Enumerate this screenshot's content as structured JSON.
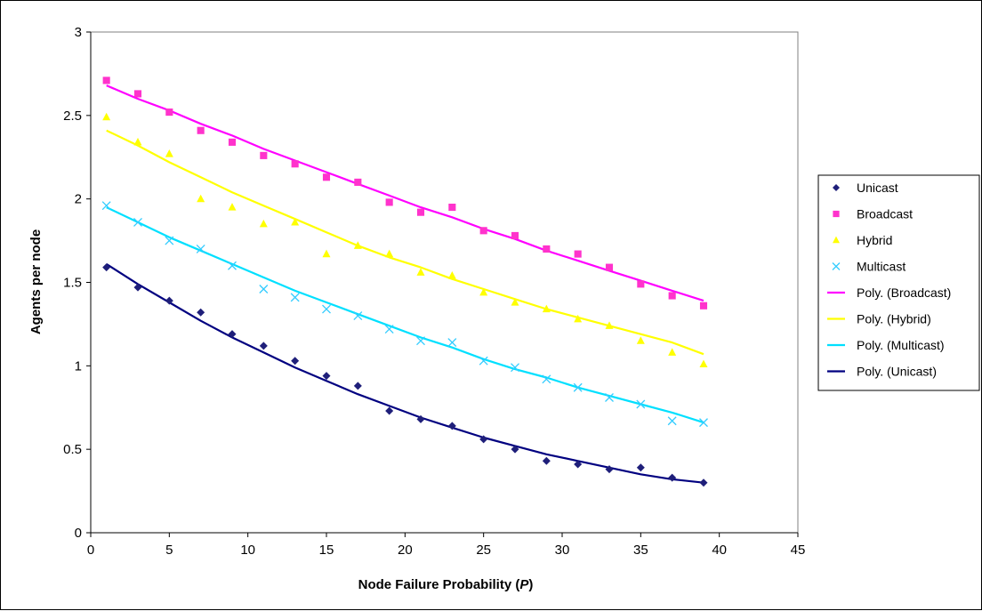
{
  "chart_data": {
    "type": "scatter",
    "title": "",
    "xlabel": "Node Failure Probability (",
    "xlabel_var": "P",
    "xlabel_end": ")",
    "ylabel": "Agents per node",
    "xlim": [
      0,
      45
    ],
    "ylim": [
      0,
      3
    ],
    "xticks": [
      0,
      5,
      10,
      15,
      20,
      25,
      30,
      35,
      40,
      45
    ],
    "yticks": [
      0,
      0.5,
      1,
      1.5,
      2,
      2.5,
      3
    ],
    "ytick_labels": [
      "0",
      "0.5",
      "1",
      "1.5",
      "2",
      "2.5",
      "3"
    ],
    "grid": false,
    "legend_position": "right",
    "x": [
      1,
      3,
      5,
      7,
      9,
      11,
      13,
      15,
      17,
      19,
      21,
      23,
      25,
      27,
      29,
      31,
      33,
      35,
      37,
      39
    ],
    "series": [
      {
        "name": "Unicast",
        "marker": "diamond",
        "color": "#1F1F7A",
        "values": [
          1.59,
          1.47,
          1.39,
          1.32,
          1.19,
          1.12,
          1.03,
          0.94,
          0.88,
          0.73,
          0.68,
          0.64,
          0.56,
          0.5,
          0.43,
          0.41,
          0.38,
          0.39,
          0.33,
          0.3
        ]
      },
      {
        "name": "Broadcast",
        "marker": "square",
        "color": "#FF33CC",
        "values": [
          2.71,
          2.63,
          2.52,
          2.41,
          2.34,
          2.26,
          2.21,
          2.13,
          2.1,
          1.98,
          1.92,
          1.95,
          1.81,
          1.78,
          1.7,
          1.67,
          1.59,
          1.49,
          1.42,
          1.36
        ]
      },
      {
        "name": "Hybrid",
        "marker": "triangle",
        "color": "#FFFF00",
        "values": [
          2.49,
          2.34,
          2.27,
          2.0,
          1.95,
          1.85,
          1.86,
          1.67,
          1.72,
          1.67,
          1.56,
          1.54,
          1.44,
          1.38,
          1.34,
          1.28,
          1.24,
          1.15,
          1.08,
          1.01
        ]
      },
      {
        "name": "Multicast",
        "marker": "x",
        "color": "#33CCFF",
        "values": [
          1.96,
          1.86,
          1.75,
          1.7,
          1.6,
          1.46,
          1.41,
          1.34,
          1.3,
          1.22,
          1.15,
          1.14,
          1.03,
          0.99,
          0.92,
          0.87,
          0.81,
          0.77,
          0.67,
          0.66
        ]
      }
    ],
    "trendlines": [
      {
        "name": "Poly. (Broadcast)",
        "color": "#FF00FF",
        "x_range": [
          1,
          39
        ],
        "values_at_x": [
          2.68,
          2.6,
          2.53,
          2.45,
          2.38,
          2.3,
          2.23,
          2.16,
          2.09,
          2.02,
          1.95,
          1.89,
          1.82,
          1.76,
          1.69,
          1.63,
          1.57,
          1.51,
          1.45,
          1.39
        ]
      },
      {
        "name": "Poly. (Hybrid)",
        "color": "#FFFF00",
        "x_range": [
          1,
          39
        ],
        "values_at_x": [
          2.41,
          2.32,
          2.22,
          2.13,
          2.04,
          1.96,
          1.88,
          1.8,
          1.72,
          1.65,
          1.59,
          1.52,
          1.46,
          1.4,
          1.34,
          1.29,
          1.24,
          1.19,
          1.14,
          1.07
        ]
      },
      {
        "name": "Poly. (Multicast)",
        "color": "#00E0FF",
        "x_range": [
          1,
          39
        ],
        "values_at_x": [
          1.95,
          1.86,
          1.77,
          1.69,
          1.61,
          1.53,
          1.45,
          1.38,
          1.31,
          1.24,
          1.17,
          1.11,
          1.04,
          0.98,
          0.93,
          0.87,
          0.82,
          0.77,
          0.72,
          0.66
        ]
      },
      {
        "name": "Poly. (Unicast)",
        "color": "#000080",
        "x_range": [
          1,
          39
        ],
        "values_at_x": [
          1.61,
          1.49,
          1.38,
          1.27,
          1.17,
          1.08,
          0.99,
          0.91,
          0.83,
          0.76,
          0.69,
          0.63,
          0.57,
          0.52,
          0.47,
          0.43,
          0.39,
          0.35,
          0.32,
          0.3
        ]
      }
    ],
    "legend": [
      "Unicast",
      "Broadcast",
      "Hybrid",
      "Multicast",
      "Poly. (Broadcast)",
      "Poly. (Hybrid)",
      "Poly. (Multicast)",
      "Poly. (Unicast)"
    ]
  }
}
